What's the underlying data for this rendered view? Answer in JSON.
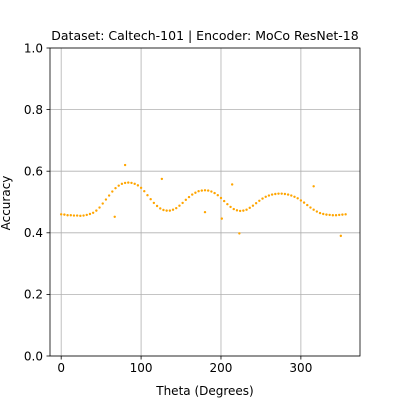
{
  "chart_data": {
    "type": "scatter",
    "title": "Dataset: Caltech-101 | Encoder: MoCo ResNet-18",
    "xlabel": "Theta (Degrees)",
    "ylabel": "Accuracy",
    "xlim": [
      -14,
      374
    ],
    "ylim": [
      0.0,
      1.0
    ],
    "xticks": [
      0,
      100,
      200,
      300
    ],
    "xtick_labels": [
      "0",
      "100",
      "200",
      "300"
    ],
    "yticks": [
      0.0,
      0.2,
      0.4,
      0.6,
      0.8,
      1.0
    ],
    "ytick_labels": [
      "0.0",
      "0.2",
      "0.4",
      "0.6",
      "0.8",
      "1.0"
    ],
    "grid": true,
    "legend": "none",
    "series": [
      {
        "color": "#ffa500",
        "points": [
          [
            0,
            0.46
          ],
          [
            4,
            0.459
          ],
          [
            8,
            0.457
          ],
          [
            12,
            0.457
          ],
          [
            16,
            0.456
          ],
          [
            20,
            0.456
          ],
          [
            24,
            0.455
          ],
          [
            28,
            0.456
          ],
          [
            32,
            0.458
          ],
          [
            36,
            0.461
          ],
          [
            40,
            0.465
          ],
          [
            44,
            0.472
          ],
          [
            48,
            0.482
          ],
          [
            52,
            0.495
          ],
          [
            56,
            0.508
          ],
          [
            60,
            0.521
          ],
          [
            64,
            0.534
          ],
          [
            68,
            0.545
          ],
          [
            72,
            0.553
          ],
          [
            76,
            0.559
          ],
          [
            80,
            0.562
          ],
          [
            84,
            0.563
          ],
          [
            88,
            0.562
          ],
          [
            92,
            0.559
          ],
          [
            96,
            0.554
          ],
          [
            100,
            0.546
          ],
          [
            104,
            0.535
          ],
          [
            108,
            0.522
          ],
          [
            112,
            0.509
          ],
          [
            116,
            0.497
          ],
          [
            120,
            0.487
          ],
          [
            124,
            0.479
          ],
          [
            128,
            0.474
          ],
          [
            132,
            0.472
          ],
          [
            136,
            0.472
          ],
          [
            140,
            0.475
          ],
          [
            144,
            0.48
          ],
          [
            148,
            0.488
          ],
          [
            152,
            0.497
          ],
          [
            156,
            0.507
          ],
          [
            160,
            0.516
          ],
          [
            164,
            0.524
          ],
          [
            168,
            0.53
          ],
          [
            172,
            0.535
          ],
          [
            176,
            0.537
          ],
          [
            180,
            0.538
          ],
          [
            184,
            0.537
          ],
          [
            188,
            0.534
          ],
          [
            192,
            0.529
          ],
          [
            196,
            0.522
          ],
          [
            200,
            0.513
          ],
          [
            204,
            0.503
          ],
          [
            208,
            0.493
          ],
          [
            212,
            0.484
          ],
          [
            216,
            0.477
          ],
          [
            220,
            0.473
          ],
          [
            224,
            0.471
          ],
          [
            228,
            0.472
          ],
          [
            232,
            0.475
          ],
          [
            236,
            0.481
          ],
          [
            240,
            0.488
          ],
          [
            244,
            0.496
          ],
          [
            248,
            0.504
          ],
          [
            252,
            0.511
          ],
          [
            256,
            0.517
          ],
          [
            260,
            0.521
          ],
          [
            264,
            0.524
          ],
          [
            268,
            0.526
          ],
          [
            272,
            0.527
          ],
          [
            276,
            0.527
          ],
          [
            280,
            0.526
          ],
          [
            284,
            0.524
          ],
          [
            288,
            0.521
          ],
          [
            292,
            0.517
          ],
          [
            296,
            0.512
          ],
          [
            300,
            0.505
          ],
          [
            304,
            0.498
          ],
          [
            308,
            0.49
          ],
          [
            312,
            0.482
          ],
          [
            316,
            0.475
          ],
          [
            320,
            0.469
          ],
          [
            324,
            0.464
          ],
          [
            328,
            0.461
          ],
          [
            332,
            0.459
          ],
          [
            336,
            0.458
          ],
          [
            340,
            0.457
          ],
          [
            344,
            0.457
          ],
          [
            348,
            0.458
          ],
          [
            352,
            0.459
          ],
          [
            356,
            0.46
          ],
          [
            67,
            0.452
          ],
          [
            80,
            0.62
          ],
          [
            126,
            0.575
          ],
          [
            180,
            0.467
          ],
          [
            201,
            0.446
          ],
          [
            214,
            0.557
          ],
          [
            223,
            0.398
          ],
          [
            316,
            0.551
          ],
          [
            350,
            0.39
          ]
        ]
      }
    ]
  }
}
